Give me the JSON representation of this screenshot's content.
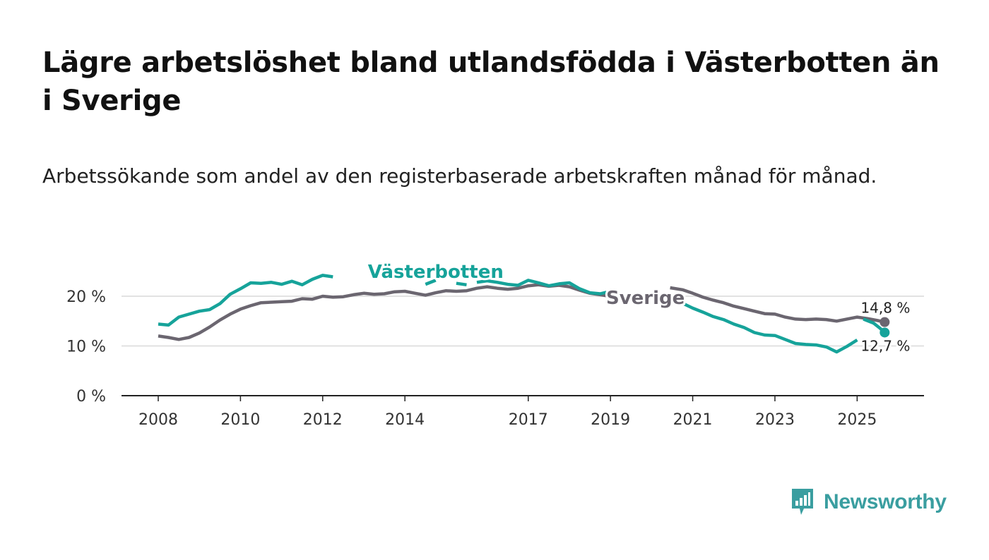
{
  "title": "Lägre arbetslöshet bland utlandsfödda i Västerbotten än i Sverige",
  "subtitle": "Arbetssökande som andel av den registerbaserade arbetskraften månad för månad.",
  "brand": {
    "name": "Newsworthy",
    "color": "#3a9ea0"
  },
  "chart_data": {
    "type": "line",
    "title": "Lägre arbetslöshet bland utlandsfödda i Västerbotten än i Sverige",
    "xlabel": "",
    "ylabel": "",
    "xlim": [
      2008,
      2025.75
    ],
    "ylim": [
      0,
      20
    ],
    "y_ticks": [
      {
        "value": 0,
        "label": "0 %"
      },
      {
        "value": 10,
        "label": "10 %"
      },
      {
        "value": 20,
        "label": "20 %"
      }
    ],
    "x_ticks": [
      {
        "value": 2008,
        "label": "2008"
      },
      {
        "value": 2010,
        "label": "2010"
      },
      {
        "value": 2012,
        "label": "2012"
      },
      {
        "value": 2014,
        "label": "2014"
      },
      {
        "value": 2017,
        "label": "2017"
      },
      {
        "value": 2019,
        "label": "2019"
      },
      {
        "value": 2021,
        "label": "2021"
      },
      {
        "value": 2023,
        "label": "2023"
      },
      {
        "value": 2025,
        "label": "2025"
      }
    ],
    "grid": true,
    "series": [
      {
        "name": "Sverige",
        "label": "Sverige",
        "color": "#6b6670",
        "end_label": "14,8 %",
        "points": [
          [
            2008.0,
            12.0
          ],
          [
            2008.25,
            11.7
          ],
          [
            2008.5,
            11.3
          ],
          [
            2008.75,
            11.7
          ],
          [
            2009.0,
            12.6
          ],
          [
            2009.25,
            13.8
          ],
          [
            2009.5,
            15.2
          ],
          [
            2009.75,
            16.4
          ],
          [
            2010.0,
            17.4
          ],
          [
            2010.25,
            18.1
          ],
          [
            2010.5,
            18.7
          ],
          [
            2010.75,
            18.8
          ],
          [
            2011.0,
            18.9
          ],
          [
            2011.25,
            19.0
          ],
          [
            2011.5,
            19.5
          ],
          [
            2011.75,
            19.4
          ],
          [
            2012.0,
            20.0
          ],
          [
            2012.25,
            19.8
          ],
          [
            2012.5,
            19.9
          ],
          [
            2012.75,
            20.3
          ],
          [
            2013.0,
            20.6
          ],
          [
            2013.25,
            20.4
          ],
          [
            2013.5,
            20.5
          ],
          [
            2013.75,
            20.9
          ],
          [
            2014.0,
            21.0
          ],
          [
            2014.25,
            20.6
          ],
          [
            2014.5,
            20.2
          ],
          [
            2014.75,
            20.7
          ],
          [
            2015.0,
            21.1
          ],
          [
            2015.25,
            21.0
          ],
          [
            2015.5,
            21.1
          ],
          [
            2015.75,
            21.6
          ],
          [
            2016.0,
            21.9
          ],
          [
            2016.25,
            21.6
          ],
          [
            2016.5,
            21.4
          ],
          [
            2016.75,
            21.6
          ],
          [
            2017.0,
            22.1
          ],
          [
            2017.25,
            22.3
          ],
          [
            2017.5,
            22.0
          ],
          [
            2017.75,
            22.2
          ],
          [
            2018.0,
            21.9
          ],
          [
            2018.25,
            21.2
          ],
          [
            2018.5,
            20.6
          ],
          [
            2018.75,
            20.3
          ],
          [
            2018.9,
            20.1
          ],
          null,
          [
            2020.45,
            21.7
          ],
          [
            2020.75,
            21.3
          ],
          [
            2021.0,
            20.6
          ],
          [
            2021.25,
            19.8
          ],
          [
            2021.5,
            19.2
          ],
          [
            2021.75,
            18.7
          ],
          [
            2022.0,
            18.0
          ],
          [
            2022.25,
            17.5
          ],
          [
            2022.5,
            17.0
          ],
          [
            2022.75,
            16.5
          ],
          [
            2023.0,
            16.4
          ],
          [
            2023.25,
            15.8
          ],
          [
            2023.5,
            15.4
          ],
          [
            2023.75,
            15.3
          ],
          [
            2024.0,
            15.4
          ],
          [
            2024.25,
            15.3
          ],
          [
            2024.5,
            15.0
          ],
          [
            2024.75,
            15.4
          ],
          [
            2025.0,
            15.8
          ],
          [
            2025.25,
            15.5
          ],
          [
            2025.5,
            15.1
          ],
          [
            2025.67,
            14.8
          ]
        ]
      },
      {
        "name": "Västerbotten",
        "label": "Västerbotten",
        "color": "#16a39a",
        "end_label": "12,7 %",
        "points": [
          [
            2008.0,
            14.4
          ],
          [
            2008.25,
            14.2
          ],
          [
            2008.5,
            15.8
          ],
          [
            2008.75,
            16.4
          ],
          [
            2009.0,
            17.0
          ],
          [
            2009.25,
            17.3
          ],
          [
            2009.5,
            18.5
          ],
          [
            2009.75,
            20.4
          ],
          [
            2010.0,
            21.5
          ],
          [
            2010.25,
            22.7
          ],
          [
            2010.5,
            22.6
          ],
          [
            2010.75,
            22.8
          ],
          [
            2011.0,
            22.4
          ],
          [
            2011.25,
            23.0
          ],
          [
            2011.5,
            22.3
          ],
          [
            2011.75,
            23.4
          ],
          [
            2012.0,
            24.2
          ],
          [
            2012.25,
            23.9
          ],
          null,
          [
            2014.5,
            22.4
          ],
          [
            2014.75,
            23.2
          ],
          null,
          [
            2015.25,
            22.6
          ],
          [
            2015.5,
            22.3
          ],
          null,
          [
            2015.75,
            22.8
          ],
          [
            2016.0,
            23.1
          ],
          [
            2016.25,
            22.8
          ],
          [
            2016.5,
            22.4
          ],
          [
            2016.75,
            22.2
          ],
          [
            2017.0,
            23.2
          ],
          [
            2017.25,
            22.7
          ],
          [
            2017.5,
            22.1
          ],
          [
            2017.75,
            22.5
          ],
          [
            2018.0,
            22.7
          ],
          [
            2018.25,
            21.5
          ],
          [
            2018.5,
            20.7
          ],
          [
            2018.75,
            20.5
          ],
          [
            2018.9,
            20.8
          ],
          null,
          [
            2020.55,
            18.8
          ],
          [
            2020.75,
            18.6
          ],
          [
            2021.0,
            17.6
          ],
          [
            2021.25,
            16.8
          ],
          [
            2021.5,
            15.9
          ],
          [
            2021.75,
            15.3
          ],
          [
            2022.0,
            14.4
          ],
          [
            2022.25,
            13.7
          ],
          [
            2022.5,
            12.7
          ],
          [
            2022.75,
            12.2
          ],
          [
            2023.0,
            12.1
          ],
          [
            2023.25,
            11.3
          ],
          [
            2023.5,
            10.5
          ],
          [
            2023.75,
            10.3
          ],
          [
            2024.0,
            10.2
          ],
          [
            2024.25,
            9.8
          ],
          [
            2024.5,
            8.8
          ],
          [
            2024.75,
            9.9
          ],
          [
            2025.0,
            11.2
          ],
          null,
          [
            2025.15,
            15.4
          ],
          [
            2025.4,
            14.6
          ],
          [
            2025.55,
            13.6
          ],
          [
            2025.67,
            12.7
          ]
        ]
      }
    ]
  }
}
